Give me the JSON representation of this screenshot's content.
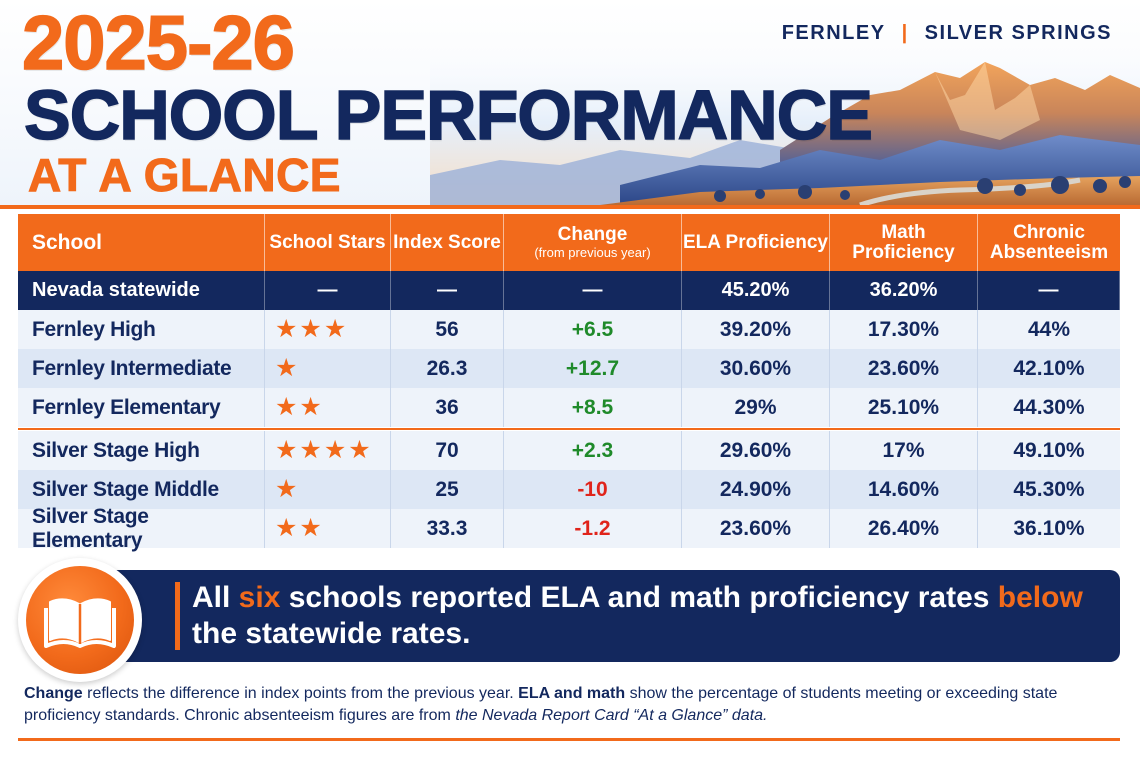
{
  "header": {
    "title_year": "2025-26",
    "title_main": "SCHOOL PERFORMANCE",
    "title_sub": "AT A GLANCE",
    "locations": [
      "FERNLEY",
      "SILVER SPRINGS"
    ],
    "separator": "|"
  },
  "table": {
    "columns": [
      {
        "label": "School",
        "sublabel": ""
      },
      {
        "label": "School Stars",
        "sublabel": ""
      },
      {
        "label": "Index Score",
        "sublabel": ""
      },
      {
        "label": "Change",
        "sublabel": "(from previous year)"
      },
      {
        "label": "ELA Proficiency",
        "sublabel": ""
      },
      {
        "label": "Math Proficiency",
        "sublabel": ""
      },
      {
        "label": "Chronic Absenteeism",
        "sublabel": ""
      }
    ],
    "statewide": {
      "school": "Nevada statewide",
      "stars": "—",
      "index": "—",
      "change": "—",
      "ela": "45.20%",
      "math": "36.20%",
      "absent": "—"
    },
    "rows": [
      {
        "school": "Fernley High",
        "stars": 3,
        "index": "56",
        "change": "+6.5",
        "ela": "39.20%",
        "math": "17.30%",
        "absent": "44%"
      },
      {
        "school": "Fernley Intermediate",
        "stars": 1,
        "index": "26.3",
        "change": "+12.7",
        "ela": "30.60%",
        "math": "23.60%",
        "absent": "42.10%"
      },
      {
        "school": "Fernley Elementary",
        "stars": 2,
        "index": "36",
        "change": "+8.5",
        "ela": "29%",
        "math": "25.10%",
        "absent": "44.30%"
      },
      {
        "school": "Silver Stage High",
        "stars": 4,
        "index": "70",
        "change": "+2.3",
        "ela": "29.60%",
        "math": "17%",
        "absent": "49.10%"
      },
      {
        "school": "Silver Stage Middle",
        "stars": 1,
        "index": "25",
        "change": "-10",
        "ela": "24.90%",
        "math": "14.60%",
        "absent": "45.30%"
      },
      {
        "school": "Silver Stage Elementary",
        "stars": 2,
        "index": "33.3",
        "change": "-1.2",
        "ela": "23.60%",
        "math": "26.40%",
        "absent": "36.10%"
      }
    ]
  },
  "callout": {
    "part1": "All ",
    "highlight1": "six",
    "part2": " schools reported ELA and math proficiency rates ",
    "highlight2": "below",
    "part3": " the statewide rates.",
    "icon": "open-book-icon"
  },
  "footnote": {
    "b1": "Change",
    "t1": " reflects the difference in index points from the previous year.  ",
    "b2": "ELA and math",
    "t2": " show the percentage of students meeting or exceeding state proficiency standards. Chronic absenteeism figures are from ",
    "i1": "the Nevada Report Card “At a Glance” data.",
    "t3": ""
  },
  "colors": {
    "orange": "#f26a1b",
    "navy": "#13285e",
    "positive": "#1f8a2a",
    "negative": "#e0241b"
  }
}
